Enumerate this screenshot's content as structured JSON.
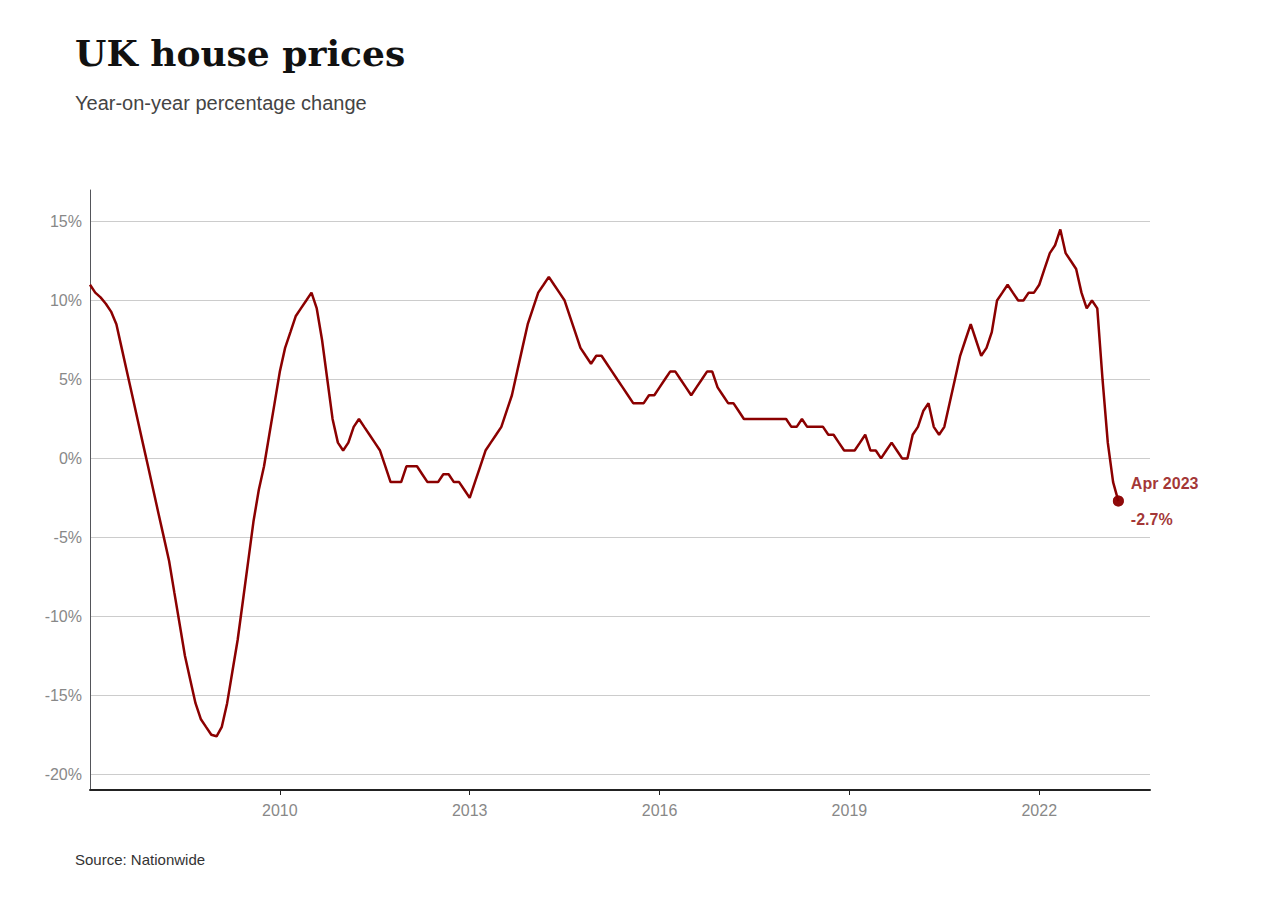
{
  "chart_data": {
    "type": "line",
    "title": "UK house prices",
    "subtitle": "Year-on-year percentage change",
    "source": "Source: Nationwide",
    "color": "#8B0000",
    "grid": true,
    "xlim": [
      2007.0,
      2023.75
    ],
    "xticks": [
      2010,
      2013,
      2016,
      2019,
      2022
    ],
    "ylim": [
      -21,
      17
    ],
    "yticks": [
      {
        "value": -20,
        "label": "-20%"
      },
      {
        "value": -15,
        "label": "-15%"
      },
      {
        "value": -10,
        "label": "-10%"
      },
      {
        "value": -5,
        "label": "-5%"
      },
      {
        "value": 0,
        "label": "0%"
      },
      {
        "value": 5,
        "label": "5%"
      },
      {
        "value": 10,
        "label": "10%"
      },
      {
        "value": 15,
        "label": "15%"
      }
    ],
    "annotations": [
      {
        "text": "Apr 2023",
        "x": 2023.25,
        "y": -2.7
      },
      {
        "text": "-2.7%",
        "x": 2023.25,
        "y": -2.7
      }
    ],
    "x": [
      2007.0,
      2007.083,
      2007.167,
      2007.25,
      2007.333,
      2007.417,
      2007.5,
      2007.583,
      2007.667,
      2007.75,
      2007.833,
      2007.917,
      2008.0,
      2008.083,
      2008.167,
      2008.25,
      2008.333,
      2008.417,
      2008.5,
      2008.583,
      2008.667,
      2008.75,
      2008.833,
      2008.917,
      2009.0,
      2009.083,
      2009.167,
      2009.25,
      2009.333,
      2009.417,
      2009.5,
      2009.583,
      2009.667,
      2009.75,
      2009.833,
      2009.917,
      2010.0,
      2010.083,
      2010.167,
      2010.25,
      2010.333,
      2010.417,
      2010.5,
      2010.583,
      2010.667,
      2010.75,
      2010.833,
      2010.917,
      2011.0,
      2011.083,
      2011.167,
      2011.25,
      2011.333,
      2011.417,
      2011.5,
      2011.583,
      2011.667,
      2011.75,
      2011.833,
      2011.917,
      2012.0,
      2012.083,
      2012.167,
      2012.25,
      2012.333,
      2012.417,
      2012.5,
      2012.583,
      2012.667,
      2012.75,
      2012.833,
      2012.917,
      2013.0,
      2013.083,
      2013.167,
      2013.25,
      2013.333,
      2013.417,
      2013.5,
      2013.583,
      2013.667,
      2013.75,
      2013.833,
      2013.917,
      2014.0,
      2014.083,
      2014.167,
      2014.25,
      2014.333,
      2014.417,
      2014.5,
      2014.583,
      2014.667,
      2014.75,
      2014.833,
      2014.917,
      2015.0,
      2015.083,
      2015.167,
      2015.25,
      2015.333,
      2015.417,
      2015.5,
      2015.583,
      2015.667,
      2015.75,
      2015.833,
      2015.917,
      2016.0,
      2016.083,
      2016.167,
      2016.25,
      2016.333,
      2016.417,
      2016.5,
      2016.583,
      2016.667,
      2016.75,
      2016.833,
      2016.917,
      2017.0,
      2017.083,
      2017.167,
      2017.25,
      2017.333,
      2017.417,
      2017.5,
      2017.583,
      2017.667,
      2017.75,
      2017.833,
      2017.917,
      2018.0,
      2018.083,
      2018.167,
      2018.25,
      2018.333,
      2018.417,
      2018.5,
      2018.583,
      2018.667,
      2018.75,
      2018.833,
      2018.917,
      2019.0,
      2019.083,
      2019.167,
      2019.25,
      2019.333,
      2019.417,
      2019.5,
      2019.583,
      2019.667,
      2019.75,
      2019.833,
      2019.917,
      2020.0,
      2020.083,
      2020.167,
      2020.25,
      2020.333,
      2020.417,
      2020.5,
      2020.583,
      2020.667,
      2020.75,
      2020.833,
      2020.917,
      2021.0,
      2021.083,
      2021.167,
      2021.25,
      2021.333,
      2021.417,
      2021.5,
      2021.583,
      2021.667,
      2021.75,
      2021.833,
      2021.917,
      2022.0,
      2022.083,
      2022.167,
      2022.25,
      2022.333,
      2022.417,
      2022.5,
      2022.583,
      2022.667,
      2022.75,
      2022.833,
      2022.917,
      2023.0,
      2023.083,
      2023.167,
      2023.25
    ],
    "values": [
      11.0,
      10.5,
      10.2,
      9.8,
      9.3,
      8.5,
      7.0,
      5.5,
      4.0,
      2.5,
      1.0,
      -0.5,
      -2.0,
      -3.5,
      -5.0,
      -6.5,
      -8.5,
      -10.5,
      -12.5,
      -14.0,
      -15.5,
      -16.5,
      -17.0,
      -17.5,
      -17.6,
      -17.0,
      -15.5,
      -13.5,
      -11.5,
      -9.0,
      -6.5,
      -4.0,
      -2.0,
      -0.5,
      1.5,
      3.5,
      5.5,
      7.0,
      8.0,
      9.0,
      9.5,
      10.0,
      10.5,
      9.5,
      7.5,
      5.0,
      2.5,
      1.0,
      0.5,
      1.0,
      2.0,
      2.5,
      2.0,
      1.5,
      1.0,
      0.5,
      -0.5,
      -1.5,
      -1.5,
      -1.5,
      -0.5,
      -0.5,
      -0.5,
      -1.0,
      -1.5,
      -1.5,
      -1.5,
      -1.0,
      -1.0,
      -1.5,
      -1.5,
      -2.0,
      -2.5,
      -1.5,
      -0.5,
      0.5,
      1.0,
      1.5,
      2.0,
      3.0,
      4.0,
      5.5,
      7.0,
      8.5,
      9.5,
      10.5,
      11.0,
      11.5,
      11.0,
      10.5,
      10.0,
      9.0,
      8.0,
      7.0,
      6.5,
      6.0,
      6.5,
      6.5,
      6.0,
      5.5,
      5.0,
      4.5,
      4.0,
      3.5,
      3.5,
      3.5,
      4.0,
      4.0,
      4.5,
      5.0,
      5.5,
      5.5,
      5.0,
      4.5,
      4.0,
      4.5,
      5.0,
      5.5,
      5.5,
      4.5,
      4.0,
      3.5,
      3.5,
      3.0,
      2.5,
      2.5,
      2.5,
      2.5,
      2.5,
      2.5,
      2.5,
      2.5,
      2.5,
      2.0,
      2.0,
      2.5,
      2.0,
      2.0,
      2.0,
      2.0,
      1.5,
      1.5,
      1.0,
      0.5,
      0.5,
      0.5,
      1.0,
      1.5,
      0.5,
      0.5,
      0.0,
      0.5,
      1.0,
      0.5,
      0.0,
      0.0,
      1.5,
      2.0,
      3.0,
      3.5,
      2.0,
      1.5,
      2.0,
      3.5,
      5.0,
      6.5,
      7.5,
      8.5,
      7.5,
      6.5,
      7.0,
      8.0,
      10.0,
      10.5,
      11.0,
      10.5,
      10.0,
      10.0,
      10.5,
      10.5,
      11.0,
      12.0,
      13.0,
      13.5,
      14.5,
      13.0,
      12.5,
      12.0,
      10.5,
      9.5,
      10.0,
      9.5,
      5.0,
      1.0,
      -1.5,
      -2.7
    ]
  }
}
